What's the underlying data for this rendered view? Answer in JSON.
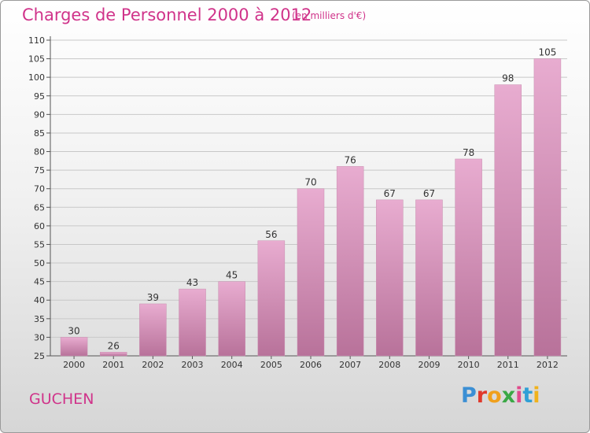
{
  "header": {
    "title": "Charges de Personnel 2000 à 2012",
    "subtitle": "(en milliers d'€)"
  },
  "footer": {
    "place": "GUCHEN",
    "logo": {
      "text": "Proxiti",
      "letter_colors": [
        "#3b8fd4",
        "#e0392b",
        "#f0a01c",
        "#3aa845",
        "#e04a8c",
        "#2f9fd6",
        "#f0b21c"
      ]
    }
  },
  "chart_data": {
    "type": "bar",
    "title": "Charges de Personnel 2000 à 2012",
    "subtitle": "(en milliers d'€)",
    "xlabel": "",
    "ylabel": "",
    "categories": [
      "2000",
      "2001",
      "2002",
      "2003",
      "2004",
      "2005",
      "2006",
      "2007",
      "2008",
      "2009",
      "2010",
      "2011",
      "2012"
    ],
    "values": [
      30,
      26,
      39,
      43,
      45,
      56,
      70,
      76,
      67,
      67,
      78,
      98,
      105
    ],
    "ylim": [
      25,
      110
    ],
    "yticks": [
      25,
      30,
      35,
      40,
      45,
      50,
      55,
      60,
      65,
      70,
      75,
      80,
      85,
      90,
      95,
      100,
      105,
      110
    ],
    "grid": true,
    "colors": {
      "bar_top": "#e8acd0",
      "bar_bottom": "#b8729a",
      "text": "#333333",
      "grid": "#c8c8c8"
    }
  }
}
